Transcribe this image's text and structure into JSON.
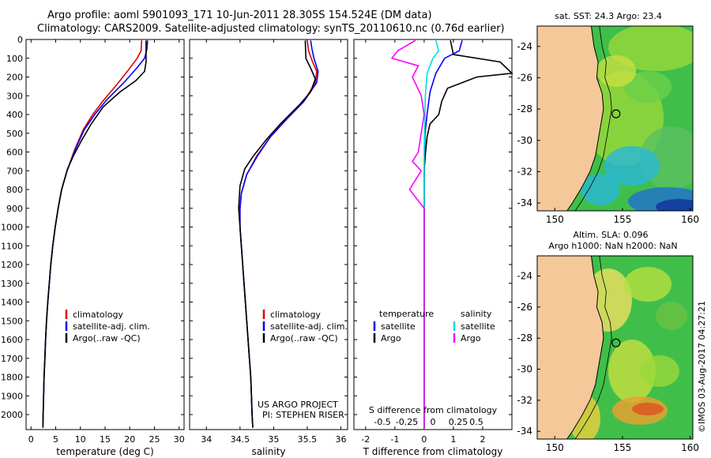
{
  "header": {
    "title_line1": "Argo profile: aoml 5901093_171 10-Jun-2011 28.305S 154.524E (DM data)",
    "title_line2": "Climatology: CARS2009. Satellite-adjusted climatology: synTS_20110610.nc (0.76d earlier)"
  },
  "depth_axis": {
    "ticks": [
      0,
      100,
      200,
      300,
      400,
      500,
      600,
      700,
      800,
      900,
      1000,
      1100,
      1200,
      1300,
      1400,
      1500,
      1600,
      1700,
      1800,
      1900,
      2000
    ],
    "range": [
      0,
      2080
    ],
    "inverted": true
  },
  "colors": {
    "climatology": "#e00000",
    "satellite": "#0000ff",
    "argo": "#000000",
    "s_argo": "#ff00ff",
    "s_sat": "#00e0e0",
    "land": "#f5c89a"
  },
  "chart_data": [
    {
      "type": "line",
      "panel": "temperature",
      "xlabel": "temperature (deg C)",
      "xlim": [
        -1,
        31
      ],
      "xticks": [
        0,
        5,
        10,
        15,
        20,
        25,
        30
      ],
      "legend": [
        "climatology",
        "satellite-adj. clim.",
        "Argo(..raw -QC)"
      ],
      "series": [
        {
          "name": "climatology",
          "points": [
            [
              22.4,
              5
            ],
            [
              22.3,
              60
            ],
            [
              21.5,
              100
            ],
            [
              19.8,
              160
            ],
            [
              17.4,
              240
            ],
            [
              14.5,
              330
            ],
            [
              12.5,
              400
            ],
            [
              10.6,
              480
            ],
            [
              8.8,
              590
            ],
            [
              7.3,
              700
            ],
            [
              6.2,
              800
            ],
            [
              5.5,
              900
            ],
            [
              4.9,
              1000
            ],
            [
              4.4,
              1100
            ],
            [
              4.0,
              1200
            ],
            [
              3.7,
              1300
            ],
            [
              3.4,
              1400
            ],
            [
              3.15,
              1500
            ],
            [
              2.95,
              1600
            ],
            [
              2.8,
              1700
            ],
            [
              2.65,
              1800
            ],
            [
              2.55,
              1900
            ],
            [
              2.45,
              2000
            ],
            [
              2.4,
              2070
            ]
          ]
        },
        {
          "name": "satellite-adj. clim.",
          "points": [
            [
              23.6,
              5
            ],
            [
              23.5,
              50
            ],
            [
              23.0,
              100
            ],
            [
              21.5,
              150
            ],
            [
              18.8,
              230
            ],
            [
              15.4,
              320
            ],
            [
              12.9,
              400
            ],
            [
              10.8,
              480
            ],
            [
              8.9,
              590
            ],
            [
              7.3,
              700
            ],
            [
              6.2,
              800
            ],
            [
              5.5,
              900
            ],
            [
              4.9,
              1000
            ],
            [
              4.4,
              1100
            ],
            [
              4.0,
              1200
            ],
            [
              3.7,
              1300
            ],
            [
              3.4,
              1400
            ],
            [
              3.15,
              1500
            ],
            [
              2.95,
              1600
            ],
            [
              2.8,
              1700
            ],
            [
              2.65,
              1800
            ],
            [
              2.55,
              1900
            ],
            [
              2.45,
              2000
            ],
            [
              2.4,
              2070
            ]
          ]
        },
        {
          "name": "Argo(..raw -QC)",
          "points": [
            [
              23.3,
              5
            ],
            [
              23.3,
              120
            ],
            [
              23.0,
              170
            ],
            [
              21.2,
              220
            ],
            [
              18.0,
              280
            ],
            [
              14.6,
              360
            ],
            [
              12.2,
              450
            ],
            [
              10.2,
              540
            ],
            [
              8.6,
              620
            ],
            [
              7.4,
              690
            ],
            [
              6.2,
              800
            ],
            [
              5.5,
              900
            ],
            [
              4.9,
              1000
            ],
            [
              4.4,
              1100
            ],
            [
              4.0,
              1200
            ],
            [
              3.7,
              1300
            ],
            [
              3.4,
              1400
            ],
            [
              3.15,
              1500
            ],
            [
              2.95,
              1600
            ],
            [
              2.8,
              1700
            ],
            [
              2.65,
              1800
            ],
            [
              2.55,
              1900
            ],
            [
              2.45,
              2000
            ],
            [
              2.4,
              2070
            ]
          ]
        }
      ]
    },
    {
      "type": "line",
      "panel": "salinity",
      "xlabel": "salinity",
      "xlim": [
        33.75,
        36.1
      ],
      "xticks": [
        34,
        34.5,
        35,
        35.5,
        36
      ],
      "legend": [
        "climatology",
        "satellite-adj. clim.",
        "Argo(..raw -QC)"
      ],
      "annotation": [
        "US ARGO PROJECT",
        "PI: STEPHEN RISER"
      ],
      "series": [
        {
          "name": "climatology",
          "points": [
            [
              35.5,
              5
            ],
            [
              35.52,
              60
            ],
            [
              35.58,
              120
            ],
            [
              35.64,
              170
            ],
            [
              35.62,
              230
            ],
            [
              35.45,
              330
            ],
            [
              35.18,
              430
            ],
            [
              34.95,
              520
            ],
            [
              34.75,
              620
            ],
            [
              34.6,
              720
            ],
            [
              34.52,
              820
            ],
            [
              34.5,
              900
            ],
            [
              34.5,
              1000
            ],
            [
              34.52,
              1100
            ],
            [
              34.54,
              1200
            ],
            [
              34.56,
              1300
            ],
            [
              34.58,
              1400
            ],
            [
              34.6,
              1500
            ],
            [
              34.62,
              1600
            ],
            [
              34.64,
              1700
            ],
            [
              34.66,
              1800
            ],
            [
              34.67,
              1900
            ],
            [
              34.68,
              2000
            ],
            [
              34.69,
              2070
            ]
          ]
        },
        {
          "name": "satellite-adj. clim.",
          "points": [
            [
              35.55,
              5
            ],
            [
              35.57,
              50
            ],
            [
              35.6,
              100
            ],
            [
              35.66,
              170
            ],
            [
              35.64,
              230
            ],
            [
              35.45,
              330
            ],
            [
              35.18,
              430
            ],
            [
              34.95,
              520
            ],
            [
              34.76,
              620
            ],
            [
              34.6,
              720
            ],
            [
              34.52,
              820
            ],
            [
              34.5,
              900
            ],
            [
              34.5,
              1000
            ],
            [
              34.52,
              1100
            ],
            [
              34.54,
              1200
            ],
            [
              34.56,
              1300
            ],
            [
              34.58,
              1400
            ],
            [
              34.6,
              1500
            ],
            [
              34.62,
              1600
            ],
            [
              34.64,
              1700
            ],
            [
              34.66,
              1800
            ],
            [
              34.67,
              1900
            ],
            [
              34.68,
              2000
            ],
            [
              34.69,
              2070
            ]
          ]
        },
        {
          "name": "Argo(..raw -QC)",
          "points": [
            [
              35.47,
              5
            ],
            [
              35.48,
              100
            ],
            [
              35.56,
              160
            ],
            [
              35.62,
              210
            ],
            [
              35.55,
              280
            ],
            [
              35.38,
              350
            ],
            [
              35.1,
              450
            ],
            [
              34.9,
              530
            ],
            [
              34.7,
              620
            ],
            [
              34.57,
              690
            ],
            [
              34.5,
              780
            ],
            [
              34.48,
              900
            ],
            [
              34.5,
              1000
            ],
            [
              34.52,
              1100
            ],
            [
              34.54,
              1200
            ],
            [
              34.56,
              1300
            ],
            [
              34.58,
              1400
            ],
            [
              34.6,
              1500
            ],
            [
              34.62,
              1600
            ],
            [
              34.64,
              1700
            ],
            [
              34.66,
              1800
            ],
            [
              34.67,
              1900
            ],
            [
              34.68,
              2000
            ],
            [
              34.69,
              2070
            ]
          ]
        }
      ]
    },
    {
      "type": "line",
      "panel": "difference",
      "xlabel": "T difference from climatology",
      "xlabel_top": "S difference from climatology",
      "xlim": [
        -2.4,
        3
      ],
      "xticks": [
        -2,
        -1,
        0,
        1,
        2
      ],
      "xticks_S_values": [
        -0.5,
        -0.25,
        0,
        0.25,
        0.5
      ],
      "xticks_S_labels": [
        "-0.5",
        "-0.25",
        "0",
        "0.25",
        "0.5"
      ],
      "legend_headings": [
        "temperature",
        "salinity"
      ],
      "legend_t": [
        "satellite",
        "Argo"
      ],
      "legend_s": [
        "satellite",
        "Argo"
      ],
      "series": [
        {
          "name": "satellite",
          "points": [
            [
              1.3,
              5
            ],
            [
              1.2,
              60
            ],
            [
              0.7,
              100
            ],
            [
              0.4,
              180
            ],
            [
              0.2,
              280
            ],
            [
              0.1,
              400
            ],
            [
              0.03,
              500
            ],
            [
              0.0,
              700
            ],
            [
              0.0,
              1000
            ],
            [
              0.0,
              2070
            ]
          ]
        },
        {
          "name": "Argo",
          "points": [
            [
              0.9,
              5
            ],
            [
              1.0,
              80
            ],
            [
              2.6,
              120
            ],
            [
              3.0,
              180
            ],
            [
              1.8,
              200
            ],
            [
              0.8,
              260
            ],
            [
              0.6,
              330
            ],
            [
              0.5,
              400
            ],
            [
              0.2,
              450
            ],
            [
              0.1,
              520
            ],
            [
              0.05,
              600
            ],
            [
              0.0,
              700
            ],
            [
              0.0,
              1000
            ],
            [
              0.0,
              2070
            ]
          ]
        },
        {
          "name": "satellite",
          "points": [
            [
              0.2,
              5
            ],
            [
              0.25,
              60
            ],
            [
              0.15,
              100
            ],
            [
              0.05,
              180
            ],
            [
              0.02,
              300
            ],
            [
              0.0,
              600
            ],
            [
              0.0,
              1000
            ],
            [
              0.0,
              2070
            ]
          ]
        },
        {
          "name": "Argo",
          "points": [
            [
              -0.15,
              5
            ],
            [
              -0.45,
              60
            ],
            [
              -0.55,
              100
            ],
            [
              -0.1,
              140
            ],
            [
              -0.2,
              200
            ],
            [
              -0.05,
              300
            ],
            [
              0.0,
              400
            ],
            [
              -0.1,
              600
            ],
            [
              -0.2,
              650
            ],
            [
              -0.05,
              700
            ],
            [
              -0.25,
              800
            ],
            [
              0.0,
              900
            ],
            [
              0.0,
              1000
            ],
            [
              0.0,
              2070
            ]
          ]
        }
      ]
    }
  ],
  "maps": [
    {
      "title": "sat. SST: 24.3 Argo: 23.4",
      "lon_ticks": [
        150,
        155,
        160
      ],
      "lat_ticks": [
        -24,
        -26,
        -28,
        -30,
        -32,
        -34
      ],
      "lon_range": [
        148.7,
        160.2
      ],
      "lat_range": [
        -22.7,
        -34.5
      ],
      "argo_position": [
        154.524,
        -28.305
      ]
    },
    {
      "title_line1": "Altim. SLA: 0.096",
      "title_line2": "Argo h1000: NaN h2000: NaN",
      "lon_ticks": [
        150,
        155,
        160
      ],
      "lat_ticks": [
        -24,
        -26,
        -28,
        -30,
        -32,
        -34
      ],
      "lon_range": [
        148.7,
        160.2
      ],
      "lat_range": [
        -22.7,
        -34.5
      ],
      "argo_position": [
        154.524,
        -28.305
      ]
    }
  ],
  "stamp": "©IMOS 03-Aug-2017 04:27:21"
}
